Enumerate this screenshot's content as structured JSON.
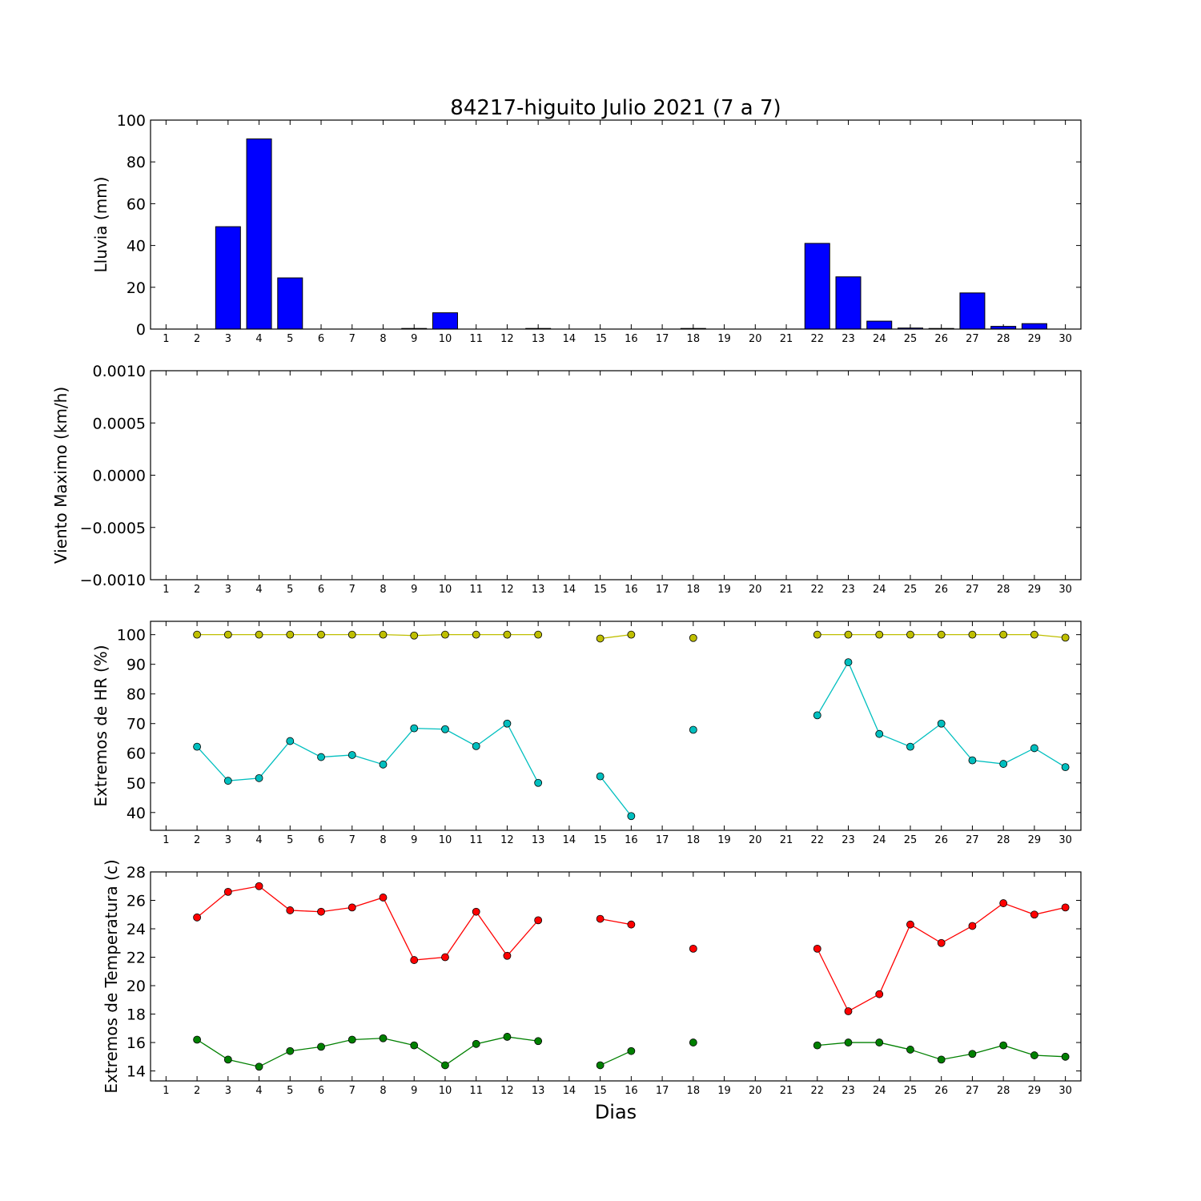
{
  "figure": {
    "title": "84217-higuito Julio 2021  (7 a 7)",
    "xlabel": "Dias",
    "x_ticks": [
      "1",
      "2",
      "3",
      "4",
      "5",
      "6",
      "7",
      "8",
      "9",
      "10",
      "11",
      "12",
      "13",
      "14",
      "15",
      "16",
      "17",
      "18",
      "19",
      "20",
      "21",
      "22",
      "23",
      "24",
      "25",
      "26",
      "27",
      "28",
      "29",
      "30"
    ]
  },
  "chart_data": [
    {
      "type": "bar",
      "ylabel": "Lluvia (mm)",
      "ylim": [
        0,
        100
      ],
      "yticks": [
        0,
        20,
        40,
        60,
        80,
        100
      ],
      "x": [
        1,
        2,
        3,
        4,
        5,
        6,
        7,
        8,
        9,
        10,
        11,
        12,
        13,
        14,
        15,
        16,
        17,
        18,
        19,
        20,
        21,
        22,
        23,
        24,
        25,
        26,
        27,
        28,
        29,
        30
      ],
      "values": [
        0,
        0,
        49,
        91,
        24.5,
        0,
        0,
        0,
        0.3,
        7.8,
        0,
        0,
        0.3,
        0,
        0,
        0,
        0,
        0.3,
        0,
        0,
        0,
        41,
        25,
        3.8,
        0.5,
        0.3,
        17.3,
        1.3,
        2.6,
        0
      ],
      "color": "#0000ff",
      "grid": false
    },
    {
      "type": "line",
      "ylabel": "Viento Maximo (km/h)",
      "ylim": [
        -0.001,
        0.001
      ],
      "yticks": [
        "−0.0010",
        "−0.0005",
        "0.0000",
        "0.0005",
        "0.0010"
      ],
      "series": [],
      "grid": false
    },
    {
      "type": "line",
      "ylabel": "Extremos de HR (%)",
      "ylim": [
        34,
        104.5
      ],
      "yticks": [
        40,
        50,
        60,
        70,
        80,
        90,
        100
      ],
      "x": [
        2,
        3,
        4,
        5,
        6,
        7,
        8,
        9,
        10,
        11,
        12,
        13,
        15,
        16,
        18,
        22,
        23,
        24,
        25,
        26,
        27,
        28,
        29,
        30
      ],
      "series": [
        {
          "color": "#bfbf00",
          "values": [
            100,
            100,
            100,
            100,
            100,
            100,
            100,
            99.7,
            100,
            100,
            100,
            100,
            98.7,
            100,
            98.9,
            100,
            100,
            100,
            100,
            100,
            100,
            100,
            100,
            99
          ]
        },
        {
          "color": "#00bfbf",
          "values": [
            62.2,
            50.7,
            51.6,
            64.1,
            58.7,
            59.4,
            56.2,
            68.4,
            68.1,
            62.4,
            70,
            50,
            52.2,
            38.8,
            67.9,
            72.8,
            90.7,
            66.5,
            62.2,
            70,
            57.6,
            56.4,
            61.7,
            55.3
          ]
        }
      ],
      "grid": false
    },
    {
      "type": "line",
      "ylabel": "Extremos de Temperatura (c)",
      "ylim": [
        13.3,
        28
      ],
      "yticks": [
        14,
        16,
        18,
        20,
        22,
        24,
        26,
        28
      ],
      "x": [
        2,
        3,
        4,
        5,
        6,
        7,
        8,
        9,
        10,
        11,
        12,
        13,
        15,
        16,
        18,
        22,
        23,
        24,
        25,
        26,
        27,
        28,
        29,
        30
      ],
      "series": [
        {
          "color": "#ff0000",
          "values": [
            24.8,
            26.6,
            27,
            25.3,
            25.2,
            25.5,
            26.2,
            21.8,
            22,
            25.2,
            22.1,
            24.6,
            24.7,
            24.3,
            22.6,
            22.6,
            18.2,
            19.4,
            24.3,
            23,
            24.2,
            25.8,
            25,
            25.5
          ]
        },
        {
          "color": "#008000",
          "values": [
            16.2,
            14.8,
            14.3,
            15.4,
            15.7,
            16.2,
            16.3,
            15.8,
            14.4,
            15.9,
            16.4,
            16.1,
            14.4,
            15.4,
            16,
            15.8,
            16,
            16,
            15.5,
            14.8,
            15.2,
            15.8,
            15.1,
            15
          ]
        }
      ],
      "grid": false
    }
  ]
}
